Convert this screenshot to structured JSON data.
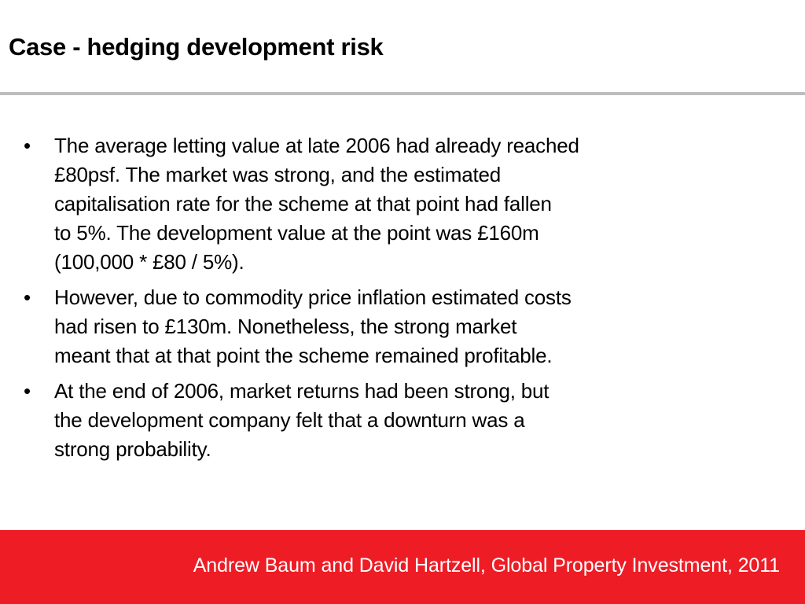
{
  "slide": {
    "title": "Case - hedging development risk",
    "bullet_glyph": "•",
    "bullets": [
      {
        "lines": [
          "The average letting value at late 2006 had already reached",
          "£80psf.  The market was strong, and the estimated",
          "capitalisation rate for the scheme at that point had fallen",
          "to 5%.   The development value at the point was £160m",
          "(100,000 * £80 / 5%)."
        ]
      },
      {
        "lines": [
          "However, due to commodity price inflation estimated costs",
          "had risen to £130m.  Nonetheless, the strong market",
          "meant that at that point the scheme remained profitable."
        ]
      },
      {
        "lines": [
          "At the end of 2006, market returns had been strong, but",
          "the development company felt that a downturn was a",
          "strong probability."
        ]
      }
    ],
    "footer": "Andrew Baum and David Hartzell, Global Property Investment, 2011"
  },
  "colors": {
    "footer_bar": "#ee1c25",
    "divider": "#bdbdbd",
    "text": "#000000",
    "footer_text": "#ffffff"
  }
}
